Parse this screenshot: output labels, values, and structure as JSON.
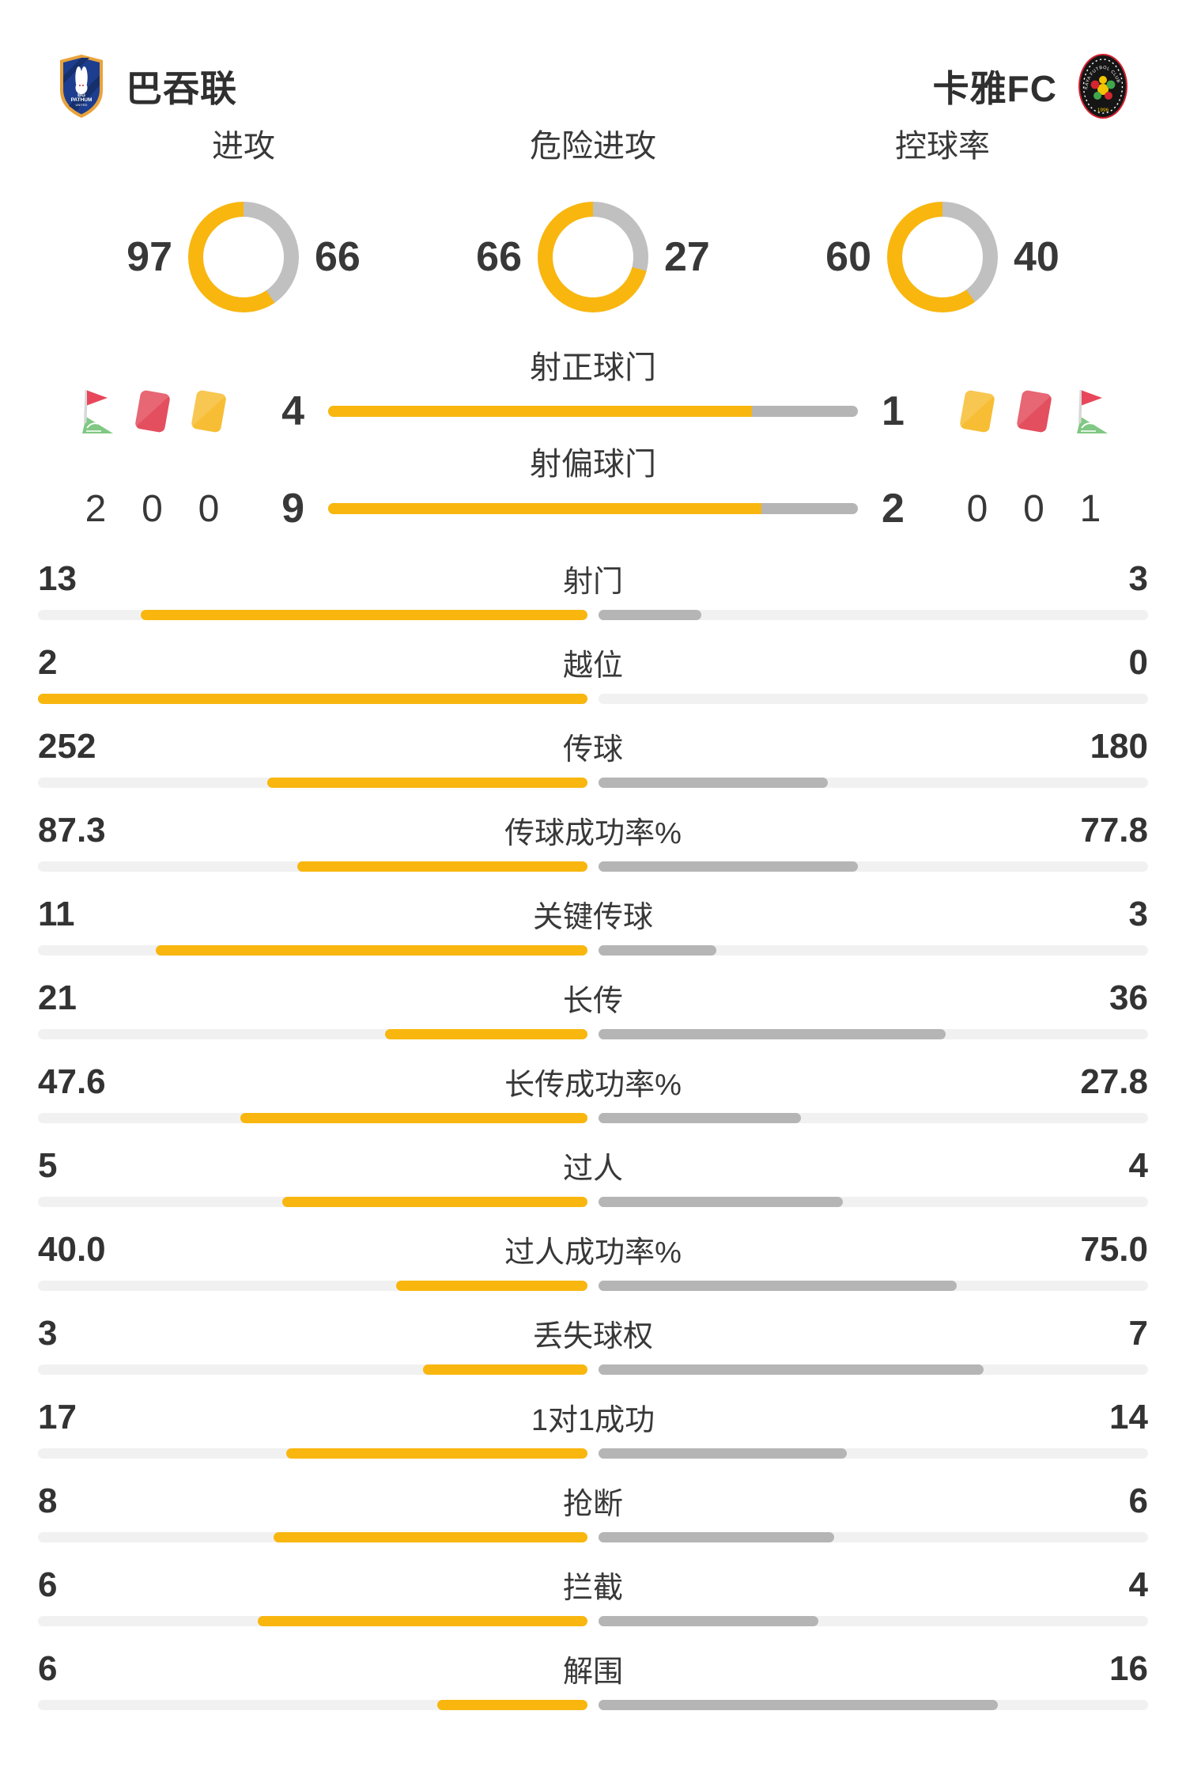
{
  "header": {
    "home": {
      "name": "巴吞联",
      "crest_text": "BG",
      "crest_sub": "PATHUM",
      "crest_sub2": "UNITED"
    },
    "away": {
      "name": "卡雅FC",
      "crest_text": "KAYA FUTBOL CLUB",
      "crest_year": "1996"
    }
  },
  "colors": {
    "home_accent": "#F8B60F",
    "away_donut_gray": "#C0C0C0",
    "away_bar_gray": "#B5B5B5",
    "track_gray": "#F1F1F2",
    "text": "#383838"
  },
  "donuts": [
    {
      "label": "进攻",
      "home": 97,
      "away": 66
    },
    {
      "label": "危险进攻",
      "home": 66,
      "away": 27
    },
    {
      "label": "控球率",
      "home": 60,
      "away": 40
    }
  ],
  "shot_bars": [
    {
      "label": "射正球门",
      "home": 4,
      "away": 1
    },
    {
      "label": "射偏球门",
      "home": 9,
      "away": 2
    }
  ],
  "discipline": {
    "home": [
      {
        "icon": "corner-flag",
        "count": 2
      },
      {
        "icon": "red-card",
        "count": 0
      },
      {
        "icon": "yellow-card",
        "count": 0
      }
    ],
    "away": [
      {
        "icon": "yellow-card",
        "count": 0
      },
      {
        "icon": "red-card",
        "count": 0
      },
      {
        "icon": "corner-flag",
        "count": 1
      }
    ]
  },
  "stats": [
    {
      "label": "射门",
      "home": "13",
      "away": "3"
    },
    {
      "label": "越位",
      "home": "2",
      "away": "0"
    },
    {
      "label": "传球",
      "home": "252",
      "away": "180"
    },
    {
      "label": "传球成功率%",
      "home": "87.3",
      "away": "77.8"
    },
    {
      "label": "关键传球",
      "home": "11",
      "away": "3"
    },
    {
      "label": "长传",
      "home": "21",
      "away": "36"
    },
    {
      "label": "长传成功率%",
      "home": "47.6",
      "away": "27.8"
    },
    {
      "label": "过人",
      "home": "5",
      "away": "4"
    },
    {
      "label": "过人成功率%",
      "home": "40.0",
      "away": "75.0"
    },
    {
      "label": "丢失球权",
      "home": "3",
      "away": "7"
    },
    {
      "label": "1对1成功",
      "home": "17",
      "away": "14"
    },
    {
      "label": "抢断",
      "home": "8",
      "away": "6"
    },
    {
      "label": "拦截",
      "home": "6",
      "away": "4"
    },
    {
      "label": "解围",
      "home": "6",
      "away": "16"
    }
  ]
}
